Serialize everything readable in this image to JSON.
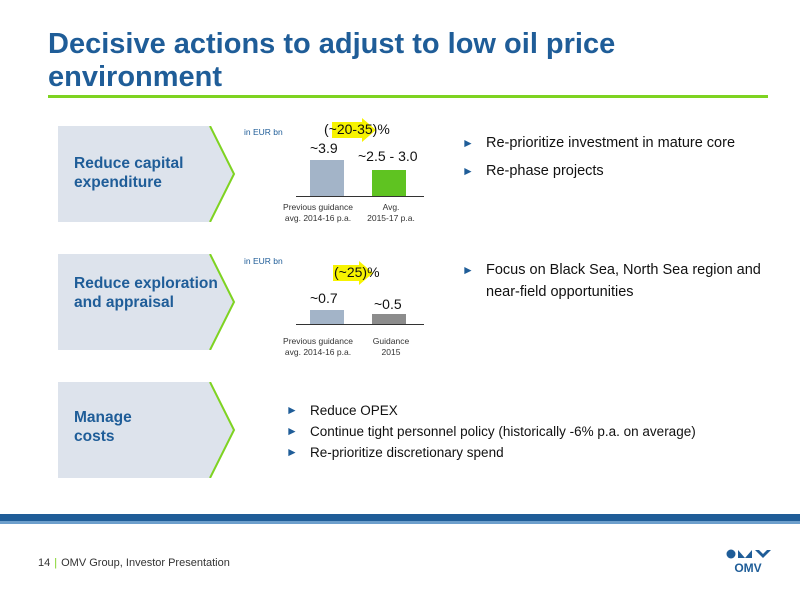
{
  "title": "Decisive actions to adjust to low oil price environment",
  "colors": {
    "brand_blue": "#1f5d98",
    "accent_green": "#7ed321",
    "panel_bg": "#dde3ec"
  },
  "sections": [
    {
      "label": "Reduce capital expenditure",
      "unit": "in EUR bn",
      "change": {
        "open": "(~",
        "value": "20-35",
        "close": ")%"
      },
      "bars": [
        {
          "value_label": "~3.9",
          "value": 3.9,
          "color": "#a3b4c8",
          "axis_label": [
            "Previous guidance",
            "avg. 2014-16 p.a."
          ]
        },
        {
          "value_label": "~2.5 - 3.0",
          "value": 2.75,
          "color": "#5fc321",
          "axis_label": [
            "Avg.",
            "2015-17 p.a."
          ]
        }
      ],
      "bullets": [
        "Re-prioritize investment in mature core",
        "Re-phase projects"
      ]
    },
    {
      "label": "Reduce exploration and appraisal",
      "unit": "in EUR bn",
      "change": {
        "open": "(~",
        "value": "25",
        "close": ")%"
      },
      "bars": [
        {
          "value_label": "~0.7",
          "value": 0.7,
          "color": "#a3b4c8",
          "axis_label": [
            "Previous guidance",
            "avg. 2014-16 p.a."
          ]
        },
        {
          "value_label": "~0.5",
          "value": 0.5,
          "color": "#8c8c8c",
          "axis_label": [
            "Guidance",
            "2015"
          ]
        }
      ],
      "bullets": [
        "Focus on Black Sea, North Sea region and near-field opportunities"
      ]
    },
    {
      "label": "Manage costs",
      "bullets": [
        "Reduce OPEX",
        "Continue tight personnel policy (historically -6% p.a. on average)",
        "Re-prioritize discretionary spend"
      ]
    }
  ],
  "footer": {
    "page": "14",
    "text": "OMV Group, Investor Presentation"
  },
  "logo_text": "OMV"
}
